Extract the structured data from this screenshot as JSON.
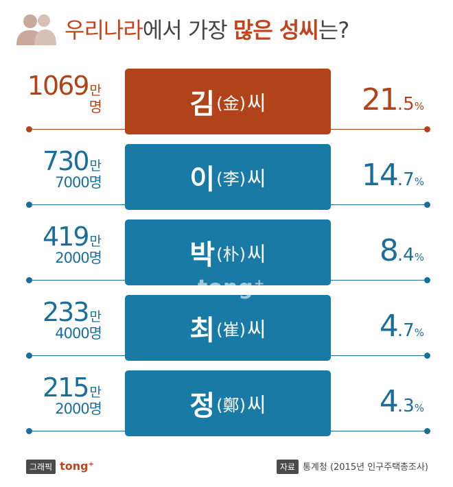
{
  "title": {
    "part1": "우리나라",
    "part2": "에서 가장 ",
    "part3": "많은 성씨",
    "part4": "는?"
  },
  "chart_data": {
    "type": "bar",
    "title": "우리나라에서 가장 많은 성씨는?",
    "rows": [
      {
        "surname": "김",
        "hanja": "(金)",
        "ssi": "씨",
        "count_main": "1069",
        "count_unit": "만",
        "count_sub": "명",
        "pct_int": "21",
        "pct_dec": ".5",
        "pct_sign": "%",
        "value_pct": 21.5
      },
      {
        "surname": "이",
        "hanja": "(李)",
        "ssi": "씨",
        "count_main": "730",
        "count_unit": "만",
        "count_sub": "7000명",
        "pct_int": "14",
        "pct_dec": ".7",
        "pct_sign": "%",
        "value_pct": 14.7
      },
      {
        "surname": "박",
        "hanja": "(朴)",
        "ssi": "씨",
        "count_main": "419",
        "count_unit": "만",
        "count_sub": "2000명",
        "pct_int": "8",
        "pct_dec": ".4",
        "pct_sign": "%",
        "value_pct": 8.4
      },
      {
        "surname": "최",
        "hanja": "(崔)",
        "ssi": "씨",
        "count_main": "233",
        "count_unit": "만",
        "count_sub": "4000명",
        "pct_int": "4",
        "pct_dec": ".7",
        "pct_sign": "%",
        "value_pct": 4.7
      },
      {
        "surname": "정",
        "hanja": "(鄭)",
        "ssi": "씨",
        "count_main": "215",
        "count_unit": "만",
        "count_sub": "2000명",
        "pct_int": "4",
        "pct_dec": ".3",
        "pct_sign": "%",
        "value_pct": 4.3
      }
    ]
  },
  "colors": {
    "highlight": "#b1431a",
    "primary": "#1a7aa6",
    "accent_text": "#b1431a",
    "primary_text": "#1a6e99"
  },
  "watermark": "tong⁺",
  "footer": {
    "credit_tag": "그래픽",
    "credit_brand": "tong⁺",
    "source_tag": "자료",
    "source_text": "통계청 (2015년 인구주택총조사)"
  }
}
